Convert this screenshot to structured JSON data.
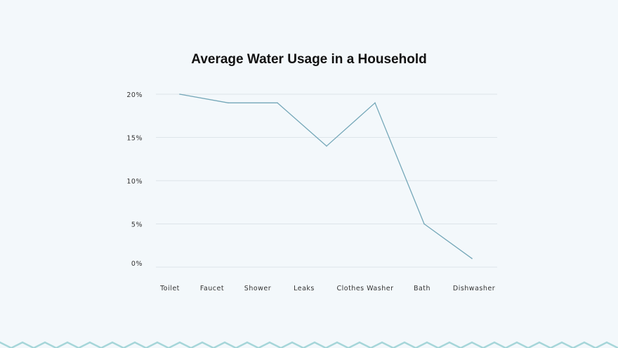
{
  "chart_data": {
    "type": "line",
    "title": "Average Water Usage in a Household",
    "categories": [
      "Toilet",
      "Faucet",
      "Shower",
      "Leaks",
      "Clothes Washer",
      "Bath",
      "Dishwasher"
    ],
    "values": [
      20,
      19,
      19,
      14,
      19,
      5,
      1
    ],
    "yticks": [
      "0%",
      "5%",
      "10%",
      "15%",
      "20%"
    ],
    "ytick_values": [
      0,
      5,
      10,
      15,
      20
    ],
    "ylim": [
      0,
      20
    ],
    "xlabel": "",
    "ylabel": "",
    "grid": true,
    "colors": {
      "line": "#74a7b8",
      "grid": "#dde5ea",
      "zigzag": "#a6d6d9"
    }
  }
}
